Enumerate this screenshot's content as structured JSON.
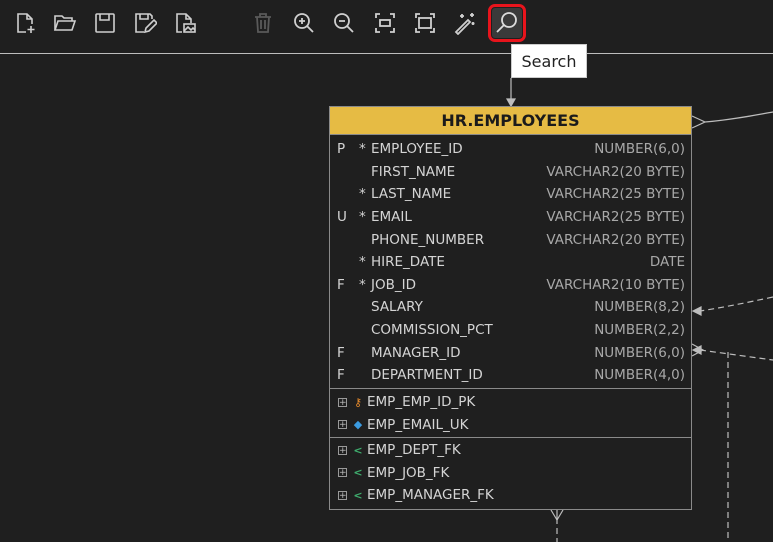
{
  "toolbar": {
    "buttons": [
      {
        "name": "new-diagram",
        "icon": "file-plus-icon"
      },
      {
        "name": "open",
        "icon": "folder-open-icon"
      },
      {
        "name": "save",
        "icon": "save-icon"
      },
      {
        "name": "save-as",
        "icon": "save-edit-icon"
      },
      {
        "name": "export-image",
        "icon": "file-image-icon"
      },
      {
        "name": "delete",
        "icon": "trash-icon",
        "disabled": true
      },
      {
        "name": "zoom-in",
        "icon": "zoom-in-icon"
      },
      {
        "name": "zoom-out",
        "icon": "zoom-out-icon"
      },
      {
        "name": "fit-selection",
        "icon": "fit-selection-icon"
      },
      {
        "name": "fit-all",
        "icon": "fit-all-icon"
      },
      {
        "name": "auto-layout",
        "icon": "magic-wand-icon"
      },
      {
        "name": "search",
        "icon": "search-icon",
        "selected": true
      }
    ],
    "tooltip": "Search"
  },
  "entity": {
    "title": "HR.EMPLOYEES",
    "header_color": "#e6bb44",
    "columns": [
      {
        "flag": "P",
        "req": "*",
        "name": "EMPLOYEE_ID",
        "type": "NUMBER(6,0)"
      },
      {
        "flag": "",
        "req": "",
        "name": "FIRST_NAME",
        "type": "VARCHAR2(20 BYTE)"
      },
      {
        "flag": "",
        "req": "*",
        "name": "LAST_NAME",
        "type": "VARCHAR2(25 BYTE)"
      },
      {
        "flag": "U",
        "req": "*",
        "name": "EMAIL",
        "type": "VARCHAR2(25 BYTE)"
      },
      {
        "flag": "",
        "req": "",
        "name": "PHONE_NUMBER",
        "type": "VARCHAR2(20 BYTE)"
      },
      {
        "flag": "",
        "req": "*",
        "name": "HIRE_DATE",
        "type": "DATE"
      },
      {
        "flag": "F",
        "req": "*",
        "name": "JOB_ID",
        "type": "VARCHAR2(10 BYTE)"
      },
      {
        "flag": "",
        "req": "",
        "name": "SALARY",
        "type": "NUMBER(8,2)"
      },
      {
        "flag": "",
        "req": "",
        "name": "COMMISSION_PCT",
        "type": "NUMBER(2,2)"
      },
      {
        "flag": "F",
        "req": "",
        "name": "MANAGER_ID",
        "type": "NUMBER(6,0)"
      },
      {
        "flag": "F",
        "req": "",
        "name": "DEPARTMENT_ID",
        "type": "NUMBER(4,0)"
      }
    ],
    "keys": [
      {
        "name": "EMP_EMP_ID_PK",
        "icon": "key-icon",
        "color": "#e58a2c"
      },
      {
        "name": "EMP_EMAIL_UK",
        "icon": "diamond-icon",
        "color": "#3b9be0"
      }
    ],
    "foreign_keys": [
      {
        "name": "EMP_DEPT_FK",
        "icon": "fk-icon",
        "color": "#3fae6e"
      },
      {
        "name": "EMP_JOB_FK",
        "icon": "fk-icon",
        "color": "#3fae6e"
      },
      {
        "name": "EMP_MANAGER_FK",
        "icon": "fk-icon",
        "color": "#3fae6e"
      }
    ]
  }
}
